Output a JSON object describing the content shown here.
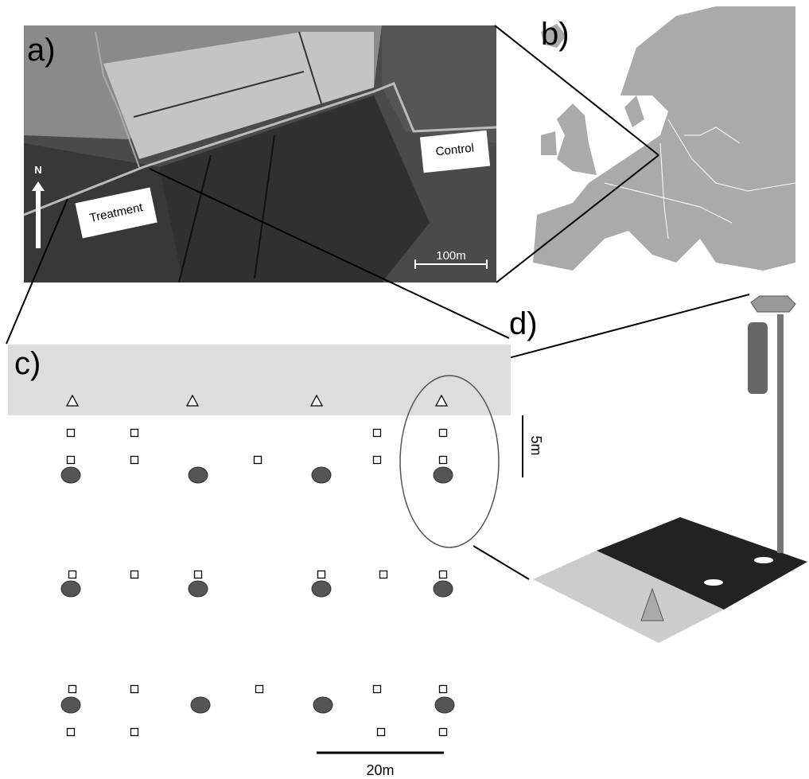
{
  "panels": {
    "a": "a)",
    "b": "b)",
    "c": "c)",
    "d": "d)"
  },
  "aerial": {
    "control": "Control",
    "treatment": "Treatment",
    "north": "N",
    "scale": "100m"
  },
  "plot": {
    "scale_vertical": "5m",
    "scale_horizontal": "20m"
  }
}
